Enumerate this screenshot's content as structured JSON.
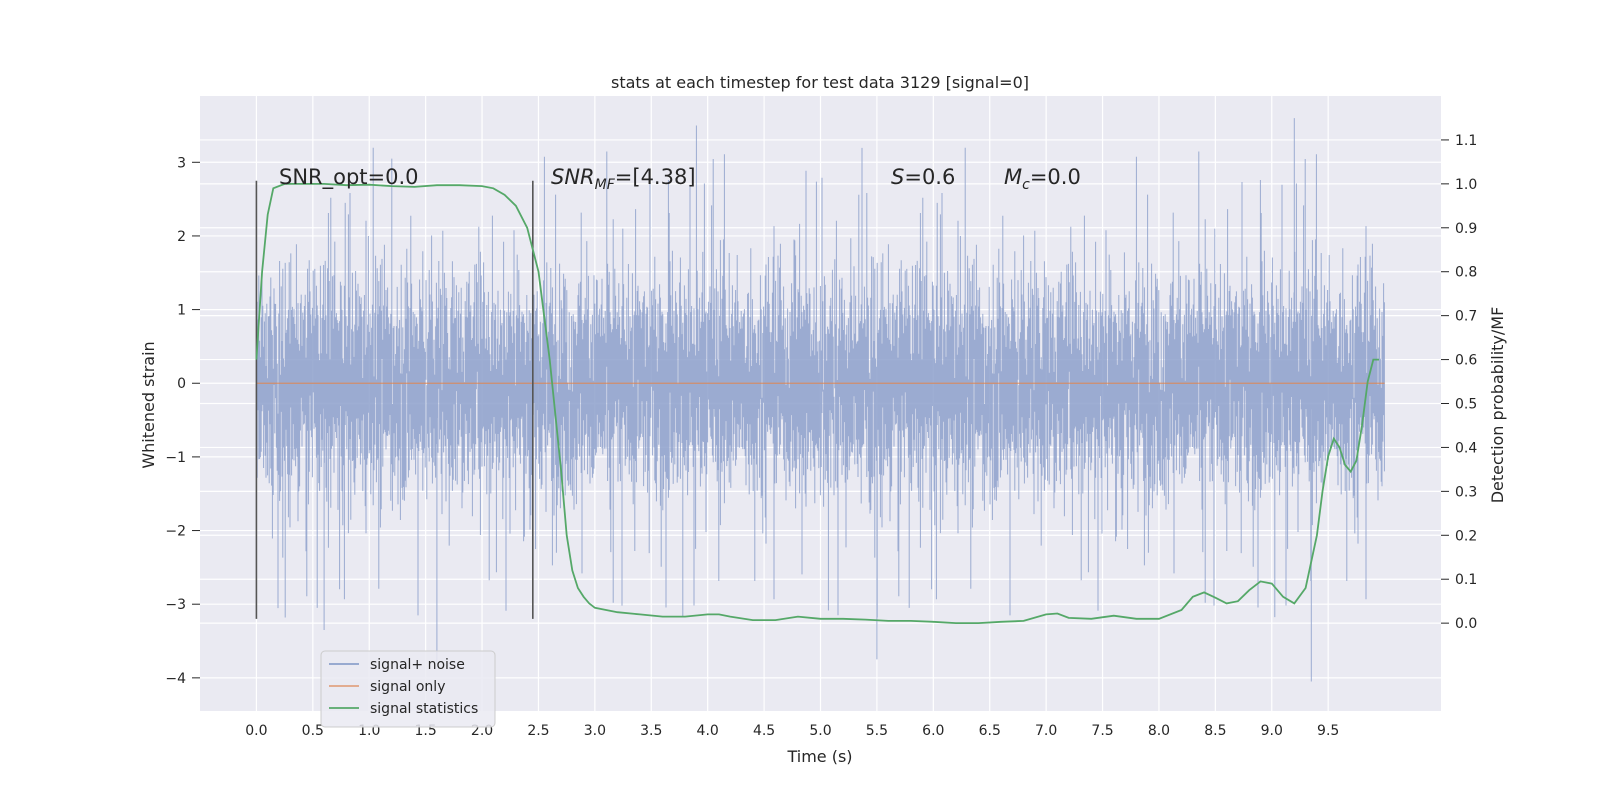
{
  "chart_data": {
    "type": "line",
    "title": "stats at each timestep for test data 3129 [signal=0]",
    "xlabel": "Time (s)",
    "ylabel": "Whitened strain",
    "ylabel_right": "Detection probability/MF",
    "xlim": [
      -0.5,
      10.5
    ],
    "ylim": [
      -4.45,
      3.9
    ],
    "ylim_right": [
      -0.2,
      1.2
    ],
    "x_ticks": [
      0.0,
      0.5,
      1.0,
      1.5,
      2.0,
      2.5,
      3.0,
      3.5,
      4.0,
      4.5,
      5.0,
      5.5,
      6.0,
      6.5,
      7.0,
      7.5,
      8.0,
      8.5,
      9.0,
      9.5
    ],
    "x_tick_labels": [
      "0.0",
      "0.5",
      "1.0",
      "1.5",
      "2.0",
      "2.5",
      "3.0",
      "3.5",
      "4.0",
      "4.5",
      "5.0",
      "5.5",
      "6.0",
      "6.5",
      "7.0",
      "7.5",
      "8.0",
      "8.5",
      "9.0",
      "9.5"
    ],
    "y_ticks": [
      -4,
      -3,
      -2,
      -1,
      0,
      1,
      2,
      3
    ],
    "y_tick_labels": [
      "−4",
      "−3",
      "−2",
      "−1",
      "0",
      "1",
      "2",
      "3"
    ],
    "y_right_ticks": [
      0.0,
      0.1,
      0.2,
      0.3,
      0.4,
      0.5,
      0.6,
      0.7,
      0.8,
      0.9,
      1.0,
      1.1
    ],
    "y_right_tick_labels": [
      "0.0",
      "0.1",
      "0.2",
      "0.3",
      "0.4",
      "0.5",
      "0.6",
      "0.7",
      "0.8",
      "0.9",
      "1.0",
      "1.1"
    ],
    "grid": true,
    "legend_position": "lower-left",
    "legend": [
      "signal+ noise",
      "signal only",
      "signal statistics"
    ],
    "colors": {
      "plot_bg": "#eaeaf2",
      "grid": "#ffffff",
      "noise": "#8da0cb",
      "signal_only": "#dd8452",
      "statistics": "#55a868",
      "vlines": "#555555",
      "text": "#262626"
    },
    "annotations": {
      "snr_opt": "SNR_opt=0.0",
      "snr_mf_main": "SNR",
      "snr_mf_sub": "MF",
      "snr_mf_value": "=[4.38]",
      "s_symbol": "S",
      "s_value": "=0.6",
      "mc_symbol": "M",
      "mc_sub": "c",
      "mc_value": "=0.0"
    },
    "vertical_lines": [
      {
        "x": 0.0,
        "y_from": -3.2,
        "y_to": 2.75
      },
      {
        "x": 2.45,
        "y_from": -3.2,
        "y_to": 2.75
      }
    ],
    "series": [
      {
        "name": "signal+ noise",
        "axis": "left",
        "kind": "noise",
        "x_range": [
          0.0,
          10.0
        ],
        "approx_envelope": 1.1,
        "approx_peak_min": -4.05,
        "approx_peak_max": 3.6
      },
      {
        "name": "signal only",
        "axis": "left",
        "x": [
          0.0,
          10.0
        ],
        "y": [
          0.0,
          0.0
        ]
      },
      {
        "name": "signal statistics",
        "axis": "right",
        "x": [
          0.0,
          0.05,
          0.1,
          0.15,
          0.25,
          0.4,
          0.6,
          0.8,
          1.0,
          1.2,
          1.4,
          1.6,
          1.8,
          2.0,
          2.1,
          2.2,
          2.3,
          2.4,
          2.5,
          2.6,
          2.7,
          2.75,
          2.8,
          2.85,
          2.9,
          2.95,
          3.0,
          3.1,
          3.2,
          3.4,
          3.6,
          3.8,
          4.0,
          4.1,
          4.2,
          4.4,
          4.6,
          4.8,
          5.0,
          5.2,
          5.4,
          5.6,
          5.8,
          6.0,
          6.2,
          6.4,
          6.6,
          6.8,
          7.0,
          7.1,
          7.2,
          7.4,
          7.6,
          7.8,
          8.0,
          8.2,
          8.3,
          8.4,
          8.5,
          8.6,
          8.7,
          8.8,
          8.9,
          9.0,
          9.1,
          9.2,
          9.3,
          9.4,
          9.45,
          9.5,
          9.55,
          9.6,
          9.65,
          9.7,
          9.75,
          9.8,
          9.85,
          9.9,
          9.95
        ],
        "y": [
          0.6,
          0.8,
          0.93,
          0.99,
          1.0,
          1.0,
          1.0,
          0.997,
          0.998,
          0.995,
          0.993,
          0.997,
          0.997,
          0.995,
          0.99,
          0.975,
          0.95,
          0.9,
          0.8,
          0.6,
          0.35,
          0.2,
          0.12,
          0.08,
          0.06,
          0.045,
          0.035,
          0.03,
          0.025,
          0.02,
          0.015,
          0.015,
          0.02,
          0.02,
          0.015,
          0.007,
          0.007,
          0.015,
          0.01,
          0.01,
          0.008,
          0.005,
          0.005,
          0.003,
          0.0,
          0.0,
          0.003,
          0.005,
          0.02,
          0.022,
          0.012,
          0.01,
          0.017,
          0.01,
          0.01,
          0.03,
          0.06,
          0.07,
          0.058,
          0.045,
          0.05,
          0.075,
          0.095,
          0.09,
          0.06,
          0.045,
          0.08,
          0.2,
          0.3,
          0.38,
          0.42,
          0.4,
          0.36,
          0.345,
          0.37,
          0.45,
          0.55,
          0.6,
          0.6
        ]
      }
    ]
  }
}
